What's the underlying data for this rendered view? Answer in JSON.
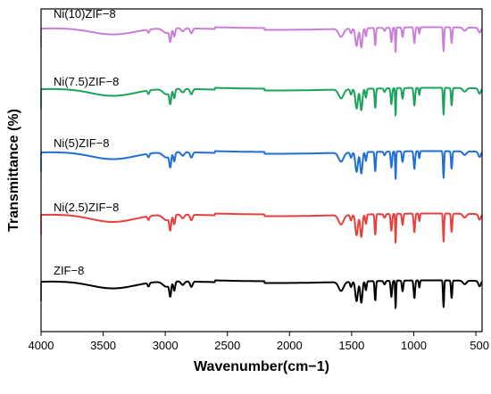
{
  "chart_data": {
    "type": "line",
    "xlabel": "Wavenumber(cm−1)",
    "ylabel": "Transmittance (%)",
    "xlim": [
      4000,
      450
    ],
    "x_reversed": true,
    "x_ticks": [
      4000,
      3500,
      3000,
      2500,
      2000,
      1500,
      1000,
      500
    ],
    "y_ticks_shown": false,
    "grid": false,
    "legend": "none",
    "series": [
      {
        "name": "Ni(10)ZIF−8",
        "color": "#c97fd8"
      },
      {
        "name": "Ni(7.5)ZIF−8",
        "color": "#1aa35a"
      },
      {
        "name": "Ni(5)ZIF−8",
        "color": "#1f6fd6"
      },
      {
        "name": "Ni(2.5)ZIF−8",
        "color": "#e8403e"
      },
      {
        "name": "ZIF−8",
        "color": "#000000"
      }
    ]
  }
}
